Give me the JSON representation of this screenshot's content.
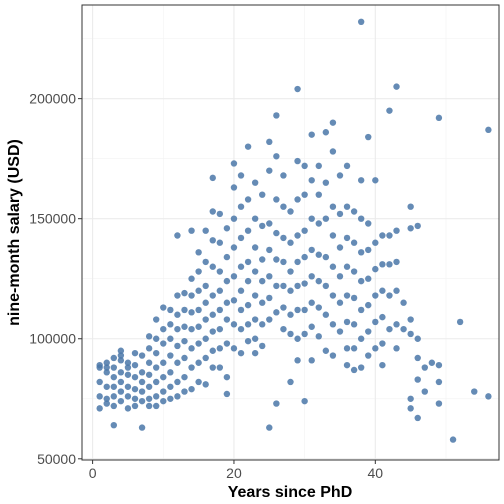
{
  "chart_data": {
    "type": "scatter",
    "xlabel": "Years since PhD",
    "ylabel": "nine-month salary (USD)",
    "xlim": [
      -1.5,
      57.5
    ],
    "ylim": [
      49500,
      239000
    ],
    "x_ticks": [
      0,
      20,
      40
    ],
    "x_tick_labels": [
      "0",
      "20",
      "40"
    ],
    "y_ticks": [
      50000,
      100000,
      150000,
      200000
    ],
    "y_tick_labels": [
      "50000",
      "100000",
      "150000",
      "200000"
    ],
    "grid": true,
    "point_color": "#4a77a8",
    "points": [
      [
        1,
        88000
      ],
      [
        1,
        82000
      ],
      [
        1,
        76000
      ],
      [
        1,
        71000
      ],
      [
        1,
        89000
      ],
      [
        2,
        90000
      ],
      [
        2,
        86000
      ],
      [
        2,
        80000
      ],
      [
        2,
        75000
      ],
      [
        2,
        73000
      ],
      [
        2,
        88000
      ],
      [
        3,
        92000
      ],
      [
        3,
        88000
      ],
      [
        3,
        84000
      ],
      [
        3,
        80000
      ],
      [
        3,
        76000
      ],
      [
        3,
        72000
      ],
      [
        3,
        64000
      ],
      [
        4,
        95000
      ],
      [
        4,
        91000
      ],
      [
        4,
        86000
      ],
      [
        4,
        82000
      ],
      [
        4,
        78000
      ],
      [
        4,
        74000
      ],
      [
        4,
        93000
      ],
      [
        5,
        90000
      ],
      [
        5,
        85000
      ],
      [
        5,
        80000
      ],
      [
        5,
        76000
      ],
      [
        5,
        71000
      ],
      [
        5,
        88000
      ],
      [
        6,
        94000
      ],
      [
        6,
        89000
      ],
      [
        6,
        84000
      ],
      [
        6,
        79000
      ],
      [
        6,
        75000
      ],
      [
        6,
        72000
      ],
      [
        7,
        93000
      ],
      [
        7,
        86000
      ],
      [
        7,
        82000
      ],
      [
        7,
        78000
      ],
      [
        7,
        74000
      ],
      [
        7,
        63000
      ],
      [
        8,
        101000
      ],
      [
        8,
        96000
      ],
      [
        8,
        90000
      ],
      [
        8,
        85000
      ],
      [
        8,
        80000
      ],
      [
        8,
        75000
      ],
      [
        8,
        72000
      ],
      [
        9,
        108000
      ],
      [
        9,
        100000
      ],
      [
        9,
        94000
      ],
      [
        9,
        88000
      ],
      [
        9,
        82000
      ],
      [
        9,
        76000
      ],
      [
        9,
        72000
      ],
      [
        10,
        113000
      ],
      [
        10,
        104000
      ],
      [
        10,
        98000
      ],
      [
        10,
        90000
      ],
      [
        10,
        84000
      ],
      [
        10,
        78000
      ],
      [
        10,
        74000
      ],
      [
        11,
        112000
      ],
      [
        11,
        106000
      ],
      [
        11,
        100000
      ],
      [
        11,
        93000
      ],
      [
        11,
        86000
      ],
      [
        11,
        80000
      ],
      [
        11,
        75000
      ],
      [
        12,
        143000
      ],
      [
        12,
        118000
      ],
      [
        12,
        110000
      ],
      [
        12,
        104000
      ],
      [
        12,
        97000
      ],
      [
        12,
        90000
      ],
      [
        12,
        82000
      ],
      [
        12,
        76000
      ],
      [
        13,
        119000
      ],
      [
        13,
        112000
      ],
      [
        13,
        105000
      ],
      [
        13,
        99000
      ],
      [
        13,
        92000
      ],
      [
        13,
        84000
      ],
      [
        13,
        78000
      ],
      [
        14,
        145000
      ],
      [
        14,
        125000
      ],
      [
        14,
        118000
      ],
      [
        14,
        111000
      ],
      [
        14,
        104000
      ],
      [
        14,
        96000
      ],
      [
        14,
        88000
      ],
      [
        14,
        79000
      ],
      [
        15,
        136000
      ],
      [
        15,
        128000
      ],
      [
        15,
        120000
      ],
      [
        15,
        112000
      ],
      [
        15,
        105000
      ],
      [
        15,
        98000
      ],
      [
        15,
        90000
      ],
      [
        15,
        82000
      ],
      [
        16,
        145000
      ],
      [
        16,
        132000
      ],
      [
        16,
        122000
      ],
      [
        16,
        115000
      ],
      [
        16,
        108000
      ],
      [
        16,
        100000
      ],
      [
        16,
        92000
      ],
      [
        16,
        81000
      ],
      [
        17,
        167000
      ],
      [
        17,
        153000
      ],
      [
        17,
        141000
      ],
      [
        17,
        130000
      ],
      [
        17,
        118000
      ],
      [
        17,
        110000
      ],
      [
        17,
        103000
      ],
      [
        17,
        95000
      ],
      [
        17,
        88000
      ],
      [
        18,
        152000
      ],
      [
        18,
        140000
      ],
      [
        18,
        128000
      ],
      [
        18,
        120000
      ],
      [
        18,
        112000
      ],
      [
        18,
        104000
      ],
      [
        18,
        96000
      ],
      [
        18,
        88000
      ],
      [
        19,
        146000
      ],
      [
        19,
        134000
      ],
      [
        19,
        124000
      ],
      [
        19,
        115000
      ],
      [
        19,
        108000
      ],
      [
        19,
        98000
      ],
      [
        19,
        84000
      ],
      [
        19,
        77000
      ],
      [
        20,
        173000
      ],
      [
        20,
        163000
      ],
      [
        20,
        150000
      ],
      [
        20,
        138000
      ],
      [
        20,
        126000
      ],
      [
        20,
        116000
      ],
      [
        20,
        106000
      ],
      [
        20,
        96000
      ],
      [
        21,
        168000
      ],
      [
        21,
        155000
      ],
      [
        21,
        142000
      ],
      [
        21,
        130000
      ],
      [
        21,
        120000
      ],
      [
        21,
        112000
      ],
      [
        21,
        104000
      ],
      [
        21,
        94000
      ],
      [
        22,
        180000
      ],
      [
        22,
        158000
      ],
      [
        22,
        145000
      ],
      [
        22,
        132000
      ],
      [
        22,
        124000
      ],
      [
        22,
        114000
      ],
      [
        22,
        106000
      ],
      [
        22,
        99000
      ],
      [
        23,
        165000
      ],
      [
        23,
        150000
      ],
      [
        23,
        138000
      ],
      [
        23,
        128000
      ],
      [
        23,
        118000
      ],
      [
        23,
        108000
      ],
      [
        23,
        100000
      ],
      [
        23,
        94000
      ],
      [
        24,
        160000
      ],
      [
        24,
        147000
      ],
      [
        24,
        133000
      ],
      [
        24,
        124000
      ],
      [
        24,
        115000
      ],
      [
        24,
        106000
      ],
      [
        24,
        97000
      ],
      [
        25,
        182000
      ],
      [
        25,
        170000
      ],
      [
        25,
        148000
      ],
      [
        25,
        137000
      ],
      [
        25,
        126000
      ],
      [
        25,
        117000
      ],
      [
        25,
        108000
      ],
      [
        25,
        63000
      ],
      [
        26,
        193000
      ],
      [
        26,
        176000
      ],
      [
        26,
        158000
      ],
      [
        26,
        144000
      ],
      [
        26,
        133000
      ],
      [
        26,
        122000
      ],
      [
        26,
        111000
      ],
      [
        26,
        73000
      ],
      [
        27,
        168000
      ],
      [
        27,
        155000
      ],
      [
        27,
        142000
      ],
      [
        27,
        132000
      ],
      [
        27,
        122000
      ],
      [
        27,
        113000
      ],
      [
        27,
        104000
      ],
      [
        28,
        153000
      ],
      [
        28,
        140000
      ],
      [
        28,
        128000
      ],
      [
        28,
        120000
      ],
      [
        28,
        110000
      ],
      [
        28,
        102000
      ],
      [
        28,
        82000
      ],
      [
        29,
        204000
      ],
      [
        29,
        174000
      ],
      [
        29,
        158000
      ],
      [
        29,
        143000
      ],
      [
        29,
        132000
      ],
      [
        29,
        122000
      ],
      [
        29,
        112000
      ],
      [
        29,
        100000
      ],
      [
        29,
        91000
      ],
      [
        30,
        172000
      ],
      [
        30,
        160000
      ],
      [
        30,
        145000
      ],
      [
        30,
        134000
      ],
      [
        30,
        123000
      ],
      [
        30,
        112000
      ],
      [
        30,
        102000
      ],
      [
        30,
        74000
      ],
      [
        31,
        185000
      ],
      [
        31,
        166000
      ],
      [
        31,
        150000
      ],
      [
        31,
        137000
      ],
      [
        31,
        126000
      ],
      [
        31,
        115000
      ],
      [
        31,
        105000
      ],
      [
        31,
        91000
      ],
      [
        32,
        172000
      ],
      [
        32,
        160000
      ],
      [
        32,
        148000
      ],
      [
        32,
        135000
      ],
      [
        32,
        124000
      ],
      [
        32,
        113000
      ],
      [
        32,
        101000
      ],
      [
        33,
        186000
      ],
      [
        33,
        165000
      ],
      [
        33,
        150000
      ],
      [
        33,
        134000
      ],
      [
        33,
        122000
      ],
      [
        33,
        110000
      ],
      [
        33,
        95000
      ],
      [
        34,
        190000
      ],
      [
        34,
        178000
      ],
      [
        34,
        155000
      ],
      [
        34,
        143000
      ],
      [
        34,
        130000
      ],
      [
        34,
        118000
      ],
      [
        34,
        106000
      ],
      [
        34,
        93000
      ],
      [
        35,
        168000
      ],
      [
        35,
        152000
      ],
      [
        35,
        138000
      ],
      [
        35,
        126000
      ],
      [
        35,
        115000
      ],
      [
        35,
        103000
      ],
      [
        36,
        172000
      ],
      [
        36,
        155000
      ],
      [
        36,
        142000
      ],
      [
        36,
        130000
      ],
      [
        36,
        118000
      ],
      [
        36,
        107000
      ],
      [
        36,
        96000
      ],
      [
        36,
        89000
      ],
      [
        37,
        153000
      ],
      [
        37,
        140000
      ],
      [
        37,
        128000
      ],
      [
        37,
        117000
      ],
      [
        37,
        106000
      ],
      [
        37,
        96000
      ],
      [
        37,
        87000
      ],
      [
        38,
        232000
      ],
      [
        38,
        166000
      ],
      [
        38,
        150000
      ],
      [
        38,
        136000
      ],
      [
        38,
        124000
      ],
      [
        38,
        112000
      ],
      [
        38,
        100000
      ],
      [
        38,
        88000
      ],
      [
        39,
        184000
      ],
      [
        39,
        148000
      ],
      [
        39,
        137000
      ],
      [
        39,
        125000
      ],
      [
        39,
        114000
      ],
      [
        39,
        103000
      ],
      [
        39,
        93000
      ],
      [
        40,
        166000
      ],
      [
        40,
        140000
      ],
      [
        40,
        129000
      ],
      [
        40,
        118000
      ],
      [
        40,
        107000
      ],
      [
        40,
        96000
      ],
      [
        41,
        143000
      ],
      [
        41,
        131000
      ],
      [
        41,
        120000
      ],
      [
        41,
        109000
      ],
      [
        41,
        98000
      ],
      [
        41,
        89000
      ],
      [
        42,
        195000
      ],
      [
        42,
        143000
      ],
      [
        42,
        131000
      ],
      [
        42,
        118000
      ],
      [
        42,
        104000
      ],
      [
        43,
        205000
      ],
      [
        43,
        145000
      ],
      [
        43,
        132000
      ],
      [
        43,
        120000
      ],
      [
        43,
        106000
      ],
      [
        43,
        96000
      ],
      [
        44,
        115000
      ],
      [
        44,
        104000
      ],
      [
        45,
        155000
      ],
      [
        45,
        146000
      ],
      [
        45,
        108000
      ],
      [
        45,
        102000
      ],
      [
        45,
        75000
      ],
      [
        45,
        71000
      ],
      [
        46,
        147000
      ],
      [
        46,
        100000
      ],
      [
        46,
        92000
      ],
      [
        46,
        83000
      ],
      [
        46,
        67000
      ],
      [
        47,
        88000
      ],
      [
        47,
        78000
      ],
      [
        48,
        90000
      ],
      [
        49,
        192000
      ],
      [
        49,
        89000
      ],
      [
        49,
        82000
      ],
      [
        49,
        73000
      ],
      [
        51,
        58000
      ],
      [
        52,
        107000
      ],
      [
        54,
        78000
      ],
      [
        56,
        187000
      ],
      [
        56,
        76000
      ]
    ]
  }
}
